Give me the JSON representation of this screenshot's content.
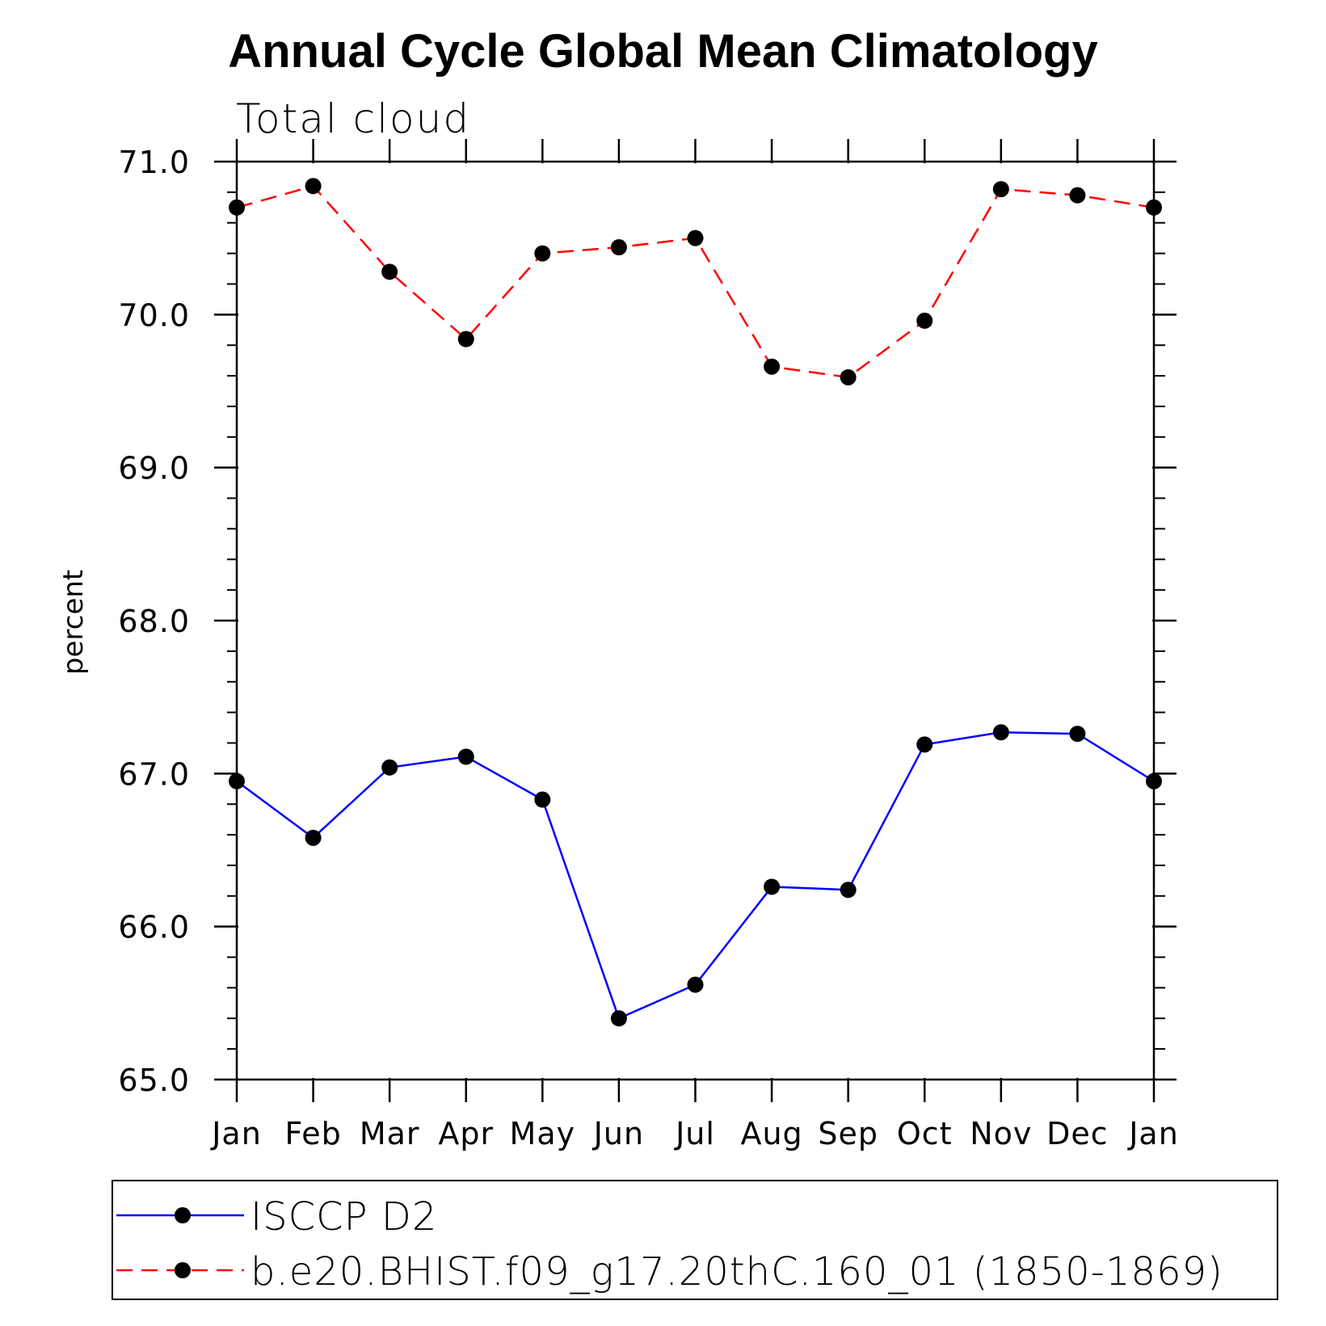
{
  "chart_data": {
    "type": "line",
    "title": "Annual Cycle Global Mean Climatology",
    "subtitle": "Total cloud",
    "xlabel": "",
    "ylabel": "percent",
    "categories": [
      "Jan",
      "Feb",
      "Mar",
      "Apr",
      "May",
      "Jun",
      "Jul",
      "Aug",
      "Sep",
      "Oct",
      "Nov",
      "Dec",
      "Jan"
    ],
    "ylim": [
      65.0,
      71.0
    ],
    "yticks": [
      "65.0",
      "66.0",
      "67.0",
      "68.0",
      "69.0",
      "70.0",
      "71.0"
    ],
    "series": [
      {
        "name": "ISCCP D2",
        "color": "#0000ff",
        "dash": "solid",
        "values": [
          66.95,
          66.58,
          67.04,
          67.11,
          66.83,
          65.4,
          65.62,
          66.26,
          66.24,
          67.19,
          67.27,
          67.26,
          66.95
        ]
      },
      {
        "name": "b.e20.BHIST.f09_g17.20thC.160_01 (1850-1869)",
        "color": "#ff0000",
        "dash": "dashed",
        "values": [
          70.7,
          70.84,
          70.28,
          69.84,
          70.4,
          70.44,
          70.5,
          69.66,
          69.59,
          69.96,
          70.82,
          70.78,
          70.7
        ]
      }
    ],
    "grid": false,
    "legend_position": "bottom"
  }
}
